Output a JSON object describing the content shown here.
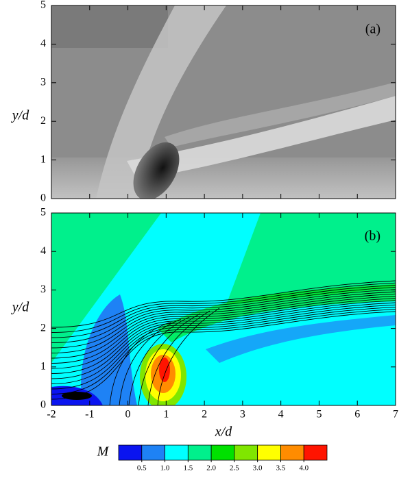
{
  "chart_data": {
    "type": "contour",
    "panels": [
      {
        "label": "(a)"
      },
      {
        "label": "(b)"
      }
    ],
    "xlabel": "x/d",
    "ylabel": "y/d",
    "xlim": [
      -2,
      7
    ],
    "xticks": [
      -2,
      -1,
      0,
      1,
      2,
      3,
      4,
      5,
      6,
      7
    ],
    "ylim": [
      0,
      5
    ],
    "yticks": [
      0,
      1,
      2,
      3,
      4,
      5
    ],
    "colorbar": {
      "label": "M",
      "colors": [
        "#0a14f0",
        "#1e82f5",
        "#00ffff",
        "#00f08c",
        "#00e100",
        "#80e600",
        "#ffff00",
        "#ff8c00",
        "#ff1400"
      ],
      "clim": [
        0,
        4.5
      ],
      "ticks": [
        0.5,
        {
          "value": 1,
          "label": "1.0"
        },
        1.5,
        {
          "value": 2,
          "label": "2.0"
        },
        2.5,
        {
          "value": 3,
          "label": "3.0"
        },
        3.5,
        {
          "value": 4,
          "label": "4.0"
        }
      ]
    }
  }
}
